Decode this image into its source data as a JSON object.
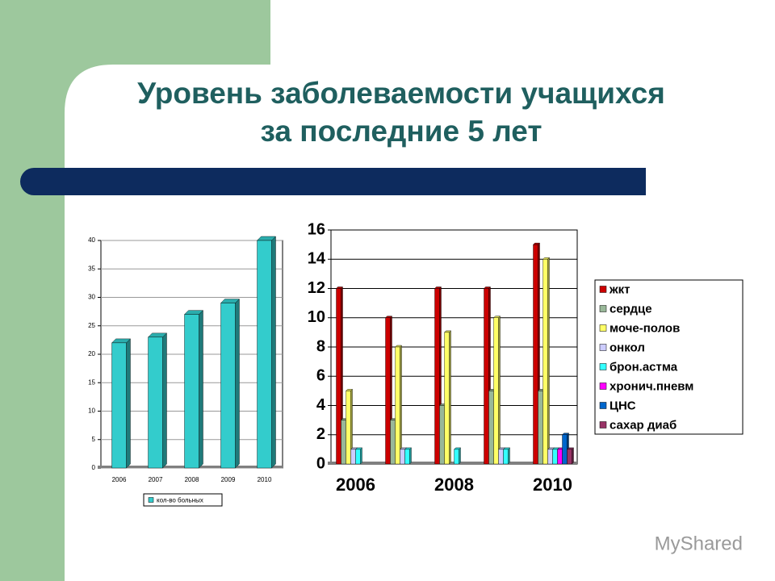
{
  "slide": {
    "title_line1": "Уровень заболеваемости учащихся",
    "title_line2": "за последние 5 лет",
    "watermark": "MyShared"
  },
  "chart_data": [
    {
      "type": "bar",
      "categories": [
        "2006",
        "2007",
        "2008",
        "2009",
        "2010"
      ],
      "series": [
        {
          "name": "кол-во больных",
          "color": "#33cccc",
          "values": [
            22,
            23,
            27,
            29,
            40
          ]
        }
      ],
      "ylim": [
        0,
        40
      ],
      "yticks": [
        0,
        5,
        10,
        15,
        20,
        25,
        30,
        35,
        40
      ],
      "grid": true,
      "legend": "bottom"
    },
    {
      "type": "bar",
      "categories": [
        "2006",
        null,
        "2008",
        null,
        "2010"
      ],
      "series": [
        {
          "name": "жкт",
          "color": "#cc0000",
          "values": [
            12,
            10,
            12,
            12,
            15
          ]
        },
        {
          "name": "сердце",
          "color": "#99b899",
          "values": [
            3,
            3,
            4,
            5,
            5
          ]
        },
        {
          "name": "моче-полов",
          "color": "#ffff66",
          "values": [
            5,
            8,
            9,
            10,
            14
          ]
        },
        {
          "name": "онкол",
          "color": "#ccccff",
          "values": [
            1,
            1,
            0,
            1,
            1
          ]
        },
        {
          "name": "брон.астма",
          "color": "#33ffff",
          "values": [
            1,
            1,
            1,
            1,
            1
          ]
        },
        {
          "name": "хронич.пневм",
          "color": "#ff00ff",
          "values": [
            0,
            0,
            0,
            0,
            1
          ]
        },
        {
          "name": "ЦНС",
          "color": "#0066cc",
          "values": [
            0,
            0,
            0,
            0,
            2
          ]
        },
        {
          "name": "сахар диаб",
          "color": "#993366",
          "values": [
            0,
            0,
            0,
            0,
            1
          ]
        }
      ],
      "ylim": [
        0,
        16
      ],
      "yticks": [
        0,
        2,
        4,
        6,
        8,
        10,
        12,
        14,
        16
      ],
      "grid": true,
      "legend": "right"
    }
  ]
}
